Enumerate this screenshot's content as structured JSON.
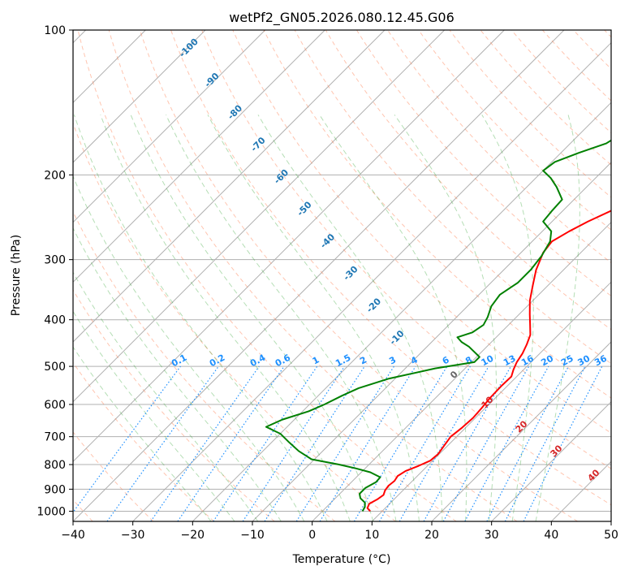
{
  "chart_data": {
    "type": "line",
    "title": "wetPf2_GN05.2026.080.12.45.G06",
    "xlabel": "Temperature (°C)",
    "ylabel": "Pressure (hPa)",
    "xlim": [
      -40,
      50
    ],
    "ylim": [
      1050,
      100
    ],
    "y_scale": "log",
    "grid": true,
    "x_ticks": [
      "−40",
      "−30",
      "−20",
      "−10",
      "0",
      "10",
      "20",
      "30",
      "40",
      "50"
    ],
    "y_ticks": [
      {
        "p": 1000,
        "label": "1000"
      },
      {
        "p": 900,
        "label": "900"
      },
      {
        "p": 800,
        "label": "800"
      },
      {
        "p": 700,
        "label": "700"
      },
      {
        "p": 600,
        "label": "600"
      },
      {
        "p": 500,
        "label": "500"
      },
      {
        "p": 400,
        "label": "400"
      },
      {
        "p": 300,
        "label": "300"
      },
      {
        "p": 200,
        "label": "200"
      },
      {
        "p": 100,
        "label": "100"
      }
    ],
    "series": [
      {
        "color": "#ff0000",
        "points": [
          [
            1000,
            8.0
          ],
          [
            985,
            7.0
          ],
          [
            965,
            6.6
          ],
          [
            945,
            7.2
          ],
          [
            925,
            7.5
          ],
          [
            905,
            7.0
          ],
          [
            885,
            6.8
          ],
          [
            865,
            7.0
          ],
          [
            845,
            6.7
          ],
          [
            825,
            7.2
          ],
          [
            805,
            8.5
          ],
          [
            785,
            9.6
          ],
          [
            760,
            9.8
          ],
          [
            730,
            9.4
          ],
          [
            700,
            9.0
          ],
          [
            670,
            9.4
          ],
          [
            640,
            9.6
          ],
          [
            610,
            9.4
          ],
          [
            580,
            9.1
          ],
          [
            550,
            9.0
          ],
          [
            525,
            9.1
          ],
          [
            508,
            8.3
          ],
          [
            490,
            7.6
          ],
          [
            470,
            7.1
          ],
          [
            450,
            6.3
          ],
          [
            430,
            5.3
          ],
          [
            410,
            3.6
          ],
          [
            390,
            1.8
          ],
          [
            365,
            -0.5
          ],
          [
            340,
            -2.5
          ],
          [
            315,
            -4.6
          ],
          [
            290,
            -6.3
          ],
          [
            275,
            -6.7
          ],
          [
            262,
            -5.5
          ],
          [
            250,
            -4.0
          ],
          [
            235,
            -1.5
          ],
          [
            220,
            1.3
          ],
          [
            205,
            3.8
          ],
          [
            190,
            5.8
          ],
          [
            175,
            7.6
          ],
          [
            160,
            8.6
          ],
          [
            150,
            9.2
          ],
          [
            140,
            10.1
          ],
          [
            130,
            11.8
          ],
          [
            120,
            13.6
          ],
          [
            110,
            15.6
          ],
          [
            100,
            17.2
          ]
        ]
      },
      {
        "color": "#008000",
        "points": [
          [
            1000,
            6.7
          ],
          [
            980,
            6.4
          ],
          [
            960,
            5.7
          ],
          [
            940,
            4.2
          ],
          [
            920,
            3.3
          ],
          [
            895,
            3.3
          ],
          [
            870,
            4.1
          ],
          [
            850,
            4.0
          ],
          [
            830,
            1.5
          ],
          [
            815,
            -1.5
          ],
          [
            800,
            -5.0
          ],
          [
            780,
            -10.5
          ],
          [
            750,
            -14.0
          ],
          [
            720,
            -17.0
          ],
          [
            690,
            -20.0
          ],
          [
            668,
            -23.5
          ],
          [
            645,
            -22.0
          ],
          [
            620,
            -19.0
          ],
          [
            600,
            -17.5
          ],
          [
            575,
            -16.0
          ],
          [
            555,
            -14.5
          ],
          [
            530,
            -11.0
          ],
          [
            505,
            -5.0
          ],
          [
            490,
            0.5
          ],
          [
            478,
            0.5
          ],
          [
            468,
            -1.0
          ],
          [
            455,
            -3.0
          ],
          [
            445,
            -5.0
          ],
          [
            435,
            -6.5
          ],
          [
            425,
            -4.8
          ],
          [
            410,
            -4.2
          ],
          [
            395,
            -4.8
          ],
          [
            375,
            -6.0
          ],
          [
            355,
            -6.5
          ],
          [
            335,
            -5.5
          ],
          [
            315,
            -5.5
          ],
          [
            295,
            -6.0
          ],
          [
            275,
            -7.0
          ],
          [
            262,
            -8.5
          ],
          [
            250,
            -11.5
          ],
          [
            238,
            -11.8
          ],
          [
            225,
            -12.0
          ],
          [
            212,
            -15.0
          ],
          [
            203,
            -17.5
          ],
          [
            196,
            -20.0
          ],
          [
            188,
            -19.5
          ],
          [
            180,
            -17.0
          ],
          [
            172,
            -14.0
          ],
          [
            160,
            -12.5
          ],
          [
            150,
            -11.5
          ],
          [
            140,
            -10.8
          ],
          [
            130,
            -9.4
          ],
          [
            120,
            -7.5
          ],
          [
            110,
            -5.4
          ],
          [
            100,
            -3.8
          ]
        ]
      }
    ],
    "mixing_ratio_labels": [
      "0.1",
      "0.2",
      "0.4",
      "0.6",
      "1",
      "1.5",
      "2",
      "3",
      "4",
      "6",
      "8",
      "10",
      "13",
      "16",
      "20",
      "25",
      "30",
      "36"
    ],
    "dry_adiabat_labels": [
      "-100",
      "-90",
      "-80",
      "-70",
      "-60",
      "-50",
      "-40",
      "-30",
      "-20",
      "-10"
    ],
    "moist_adiabat_labels": [
      "0",
      "10",
      "20",
      "30",
      "40"
    ]
  }
}
